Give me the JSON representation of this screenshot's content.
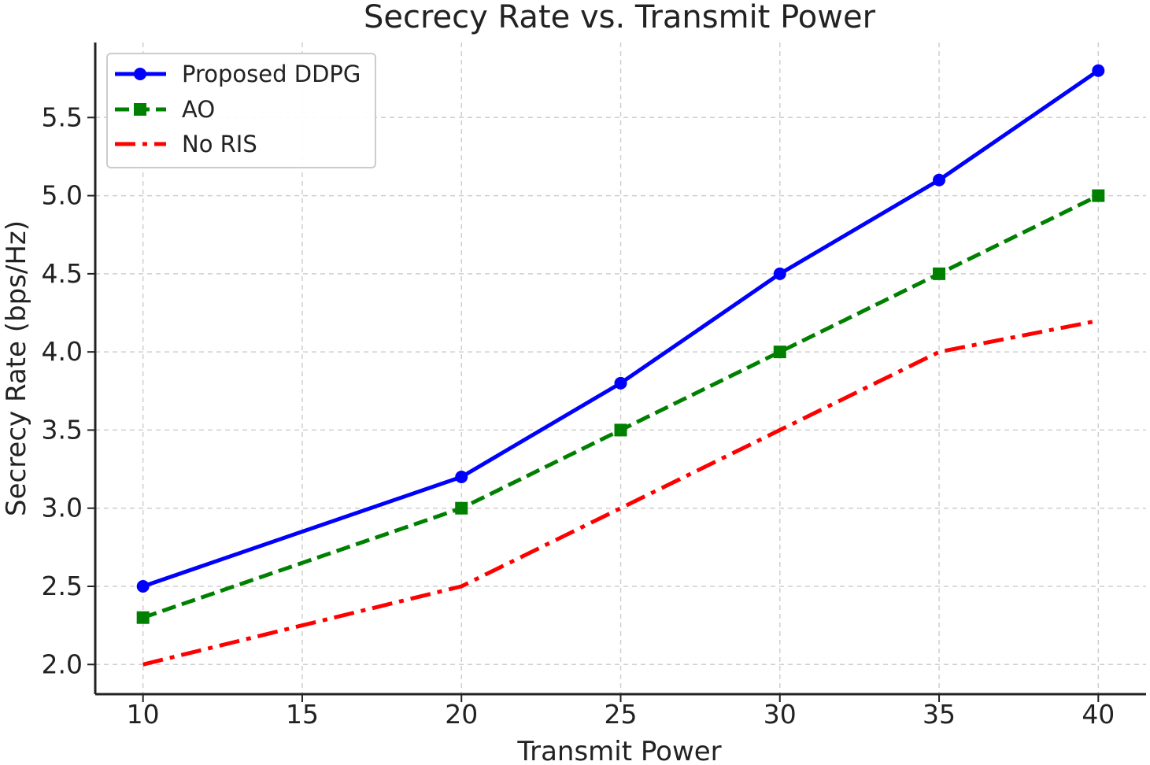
{
  "chart_data": {
    "type": "line",
    "title": "Secrecy Rate vs. Transmit Power",
    "xlabel": "Transmit Power",
    "ylabel": "Secrecy Rate (bps/Hz)",
    "x": [
      10,
      20,
      25,
      30,
      35,
      40
    ],
    "xticks": [
      10,
      15,
      20,
      25,
      30,
      35,
      40
    ],
    "yticks": [
      2.0,
      2.5,
      3.0,
      3.5,
      4.0,
      4.5,
      5.0,
      5.5
    ],
    "xlim": [
      8.5,
      41.5
    ],
    "ylim": [
      1.81,
      5.98
    ],
    "grid": true,
    "legend_position": "upper-left",
    "series": [
      {
        "name": "Proposed DDPG",
        "values": [
          2.5,
          3.2,
          3.8,
          4.5,
          5.1,
          5.8
        ],
        "color": "#0000ff",
        "line_style": "solid",
        "marker": "circle"
      },
      {
        "name": "AO",
        "values": [
          2.3,
          3.0,
          3.5,
          4.0,
          4.5,
          5.0
        ],
        "color": "#008000",
        "line_style": "dashed",
        "marker": "square"
      },
      {
        "name": "No RIS",
        "values": [
          2.0,
          2.5,
          3.0,
          3.5,
          4.0,
          4.2
        ],
        "color": "#ff0000",
        "line_style": "dashdot",
        "marker": "none"
      }
    ]
  }
}
